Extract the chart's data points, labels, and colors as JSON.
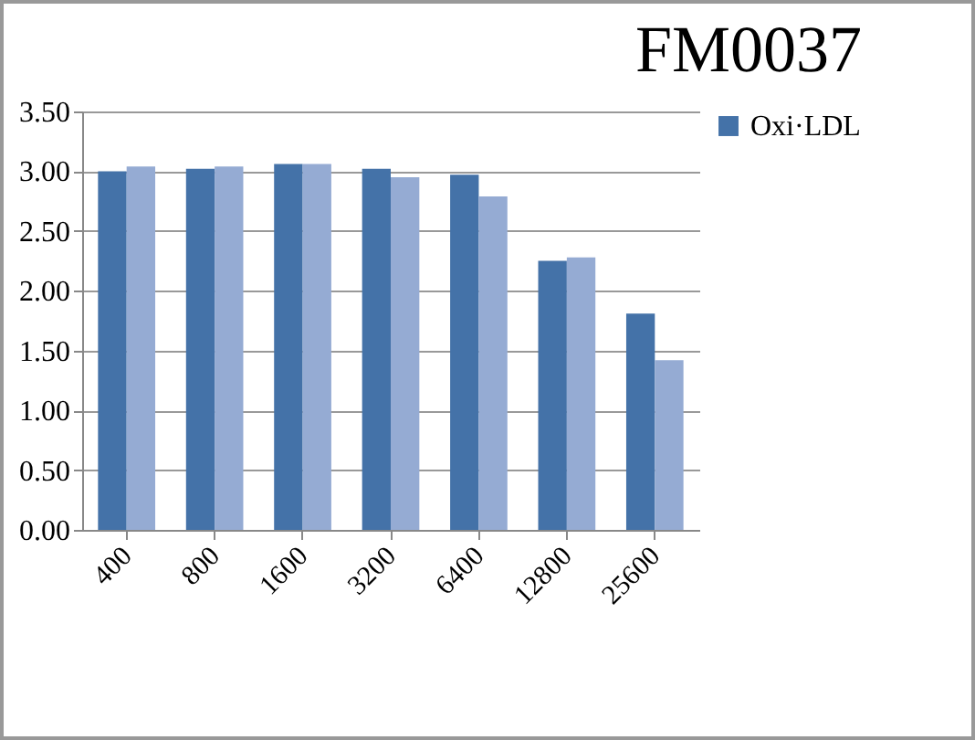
{
  "chart_data": {
    "type": "bar",
    "title": "FM0037",
    "categories": [
      "400",
      "800",
      "1600",
      "3200",
      "6400",
      "12800",
      "25600"
    ],
    "series": [
      {
        "name": "Oxi·LDL",
        "color": "#4472a8",
        "values": [
          3.0,
          3.02,
          3.06,
          3.02,
          2.97,
          2.25,
          1.81
        ]
      },
      {
        "color": "#95abd3",
        "values": [
          3.04,
          3.04,
          3.06,
          2.95,
          2.79,
          2.28,
          1.42
        ]
      }
    ],
    "ylim": [
      0,
      3.5
    ],
    "yticks": [
      {
        "value": 0,
        "label": "0.00"
      },
      {
        "value": 0.5,
        "label": "0.50"
      },
      {
        "value": 1,
        "label": "1.00"
      },
      {
        "value": 1.5,
        "label": "1.50"
      },
      {
        "value": 2,
        "label": "2.00"
      },
      {
        "value": 2.5,
        "label": "2.50"
      },
      {
        "value": 3,
        "label": "3.00"
      },
      {
        "value": 3.5,
        "label": "3.50"
      }
    ],
    "grid": "y",
    "legend": "right"
  }
}
